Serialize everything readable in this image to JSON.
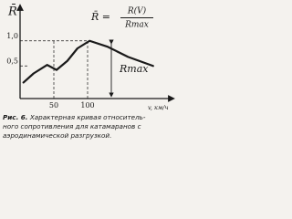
{
  "chart_data": {
    "type": "line",
    "y_label": "R̄",
    "formula": {
      "lhs": "R̄ =",
      "numerator": "R(V)",
      "denominator": "Rmax"
    },
    "annotation": "Rmax",
    "x_label": "v, км/ч",
    "caption_label": "Рис. 6.",
    "caption_lines": [
      "Характерная кривая относитель-",
      "ного сопротивления для катамаранов с",
      "аэродинамической разгрузкой."
    ],
    "x": [
      5,
      20,
      40,
      54,
      70,
      85,
      103,
      130,
      160,
      197
    ],
    "series": [
      {
        "color": "#1a1a1a",
        "values": [
          0.17,
          0.35,
          0.52,
          0.42,
          0.6,
          0.85,
          1.0,
          0.88,
          0.68,
          0.5
        ]
      }
    ],
    "xlim": [
      0,
      200
    ],
    "ylim": [
      -0.15,
      1.45
    ],
    "xticks": [
      50,
      100
    ],
    "yticks": [
      {
        "value": 0.5,
        "label": "0,5"
      },
      {
        "value": 1,
        "label": "1,0"
      }
    ],
    "grid": true
  }
}
